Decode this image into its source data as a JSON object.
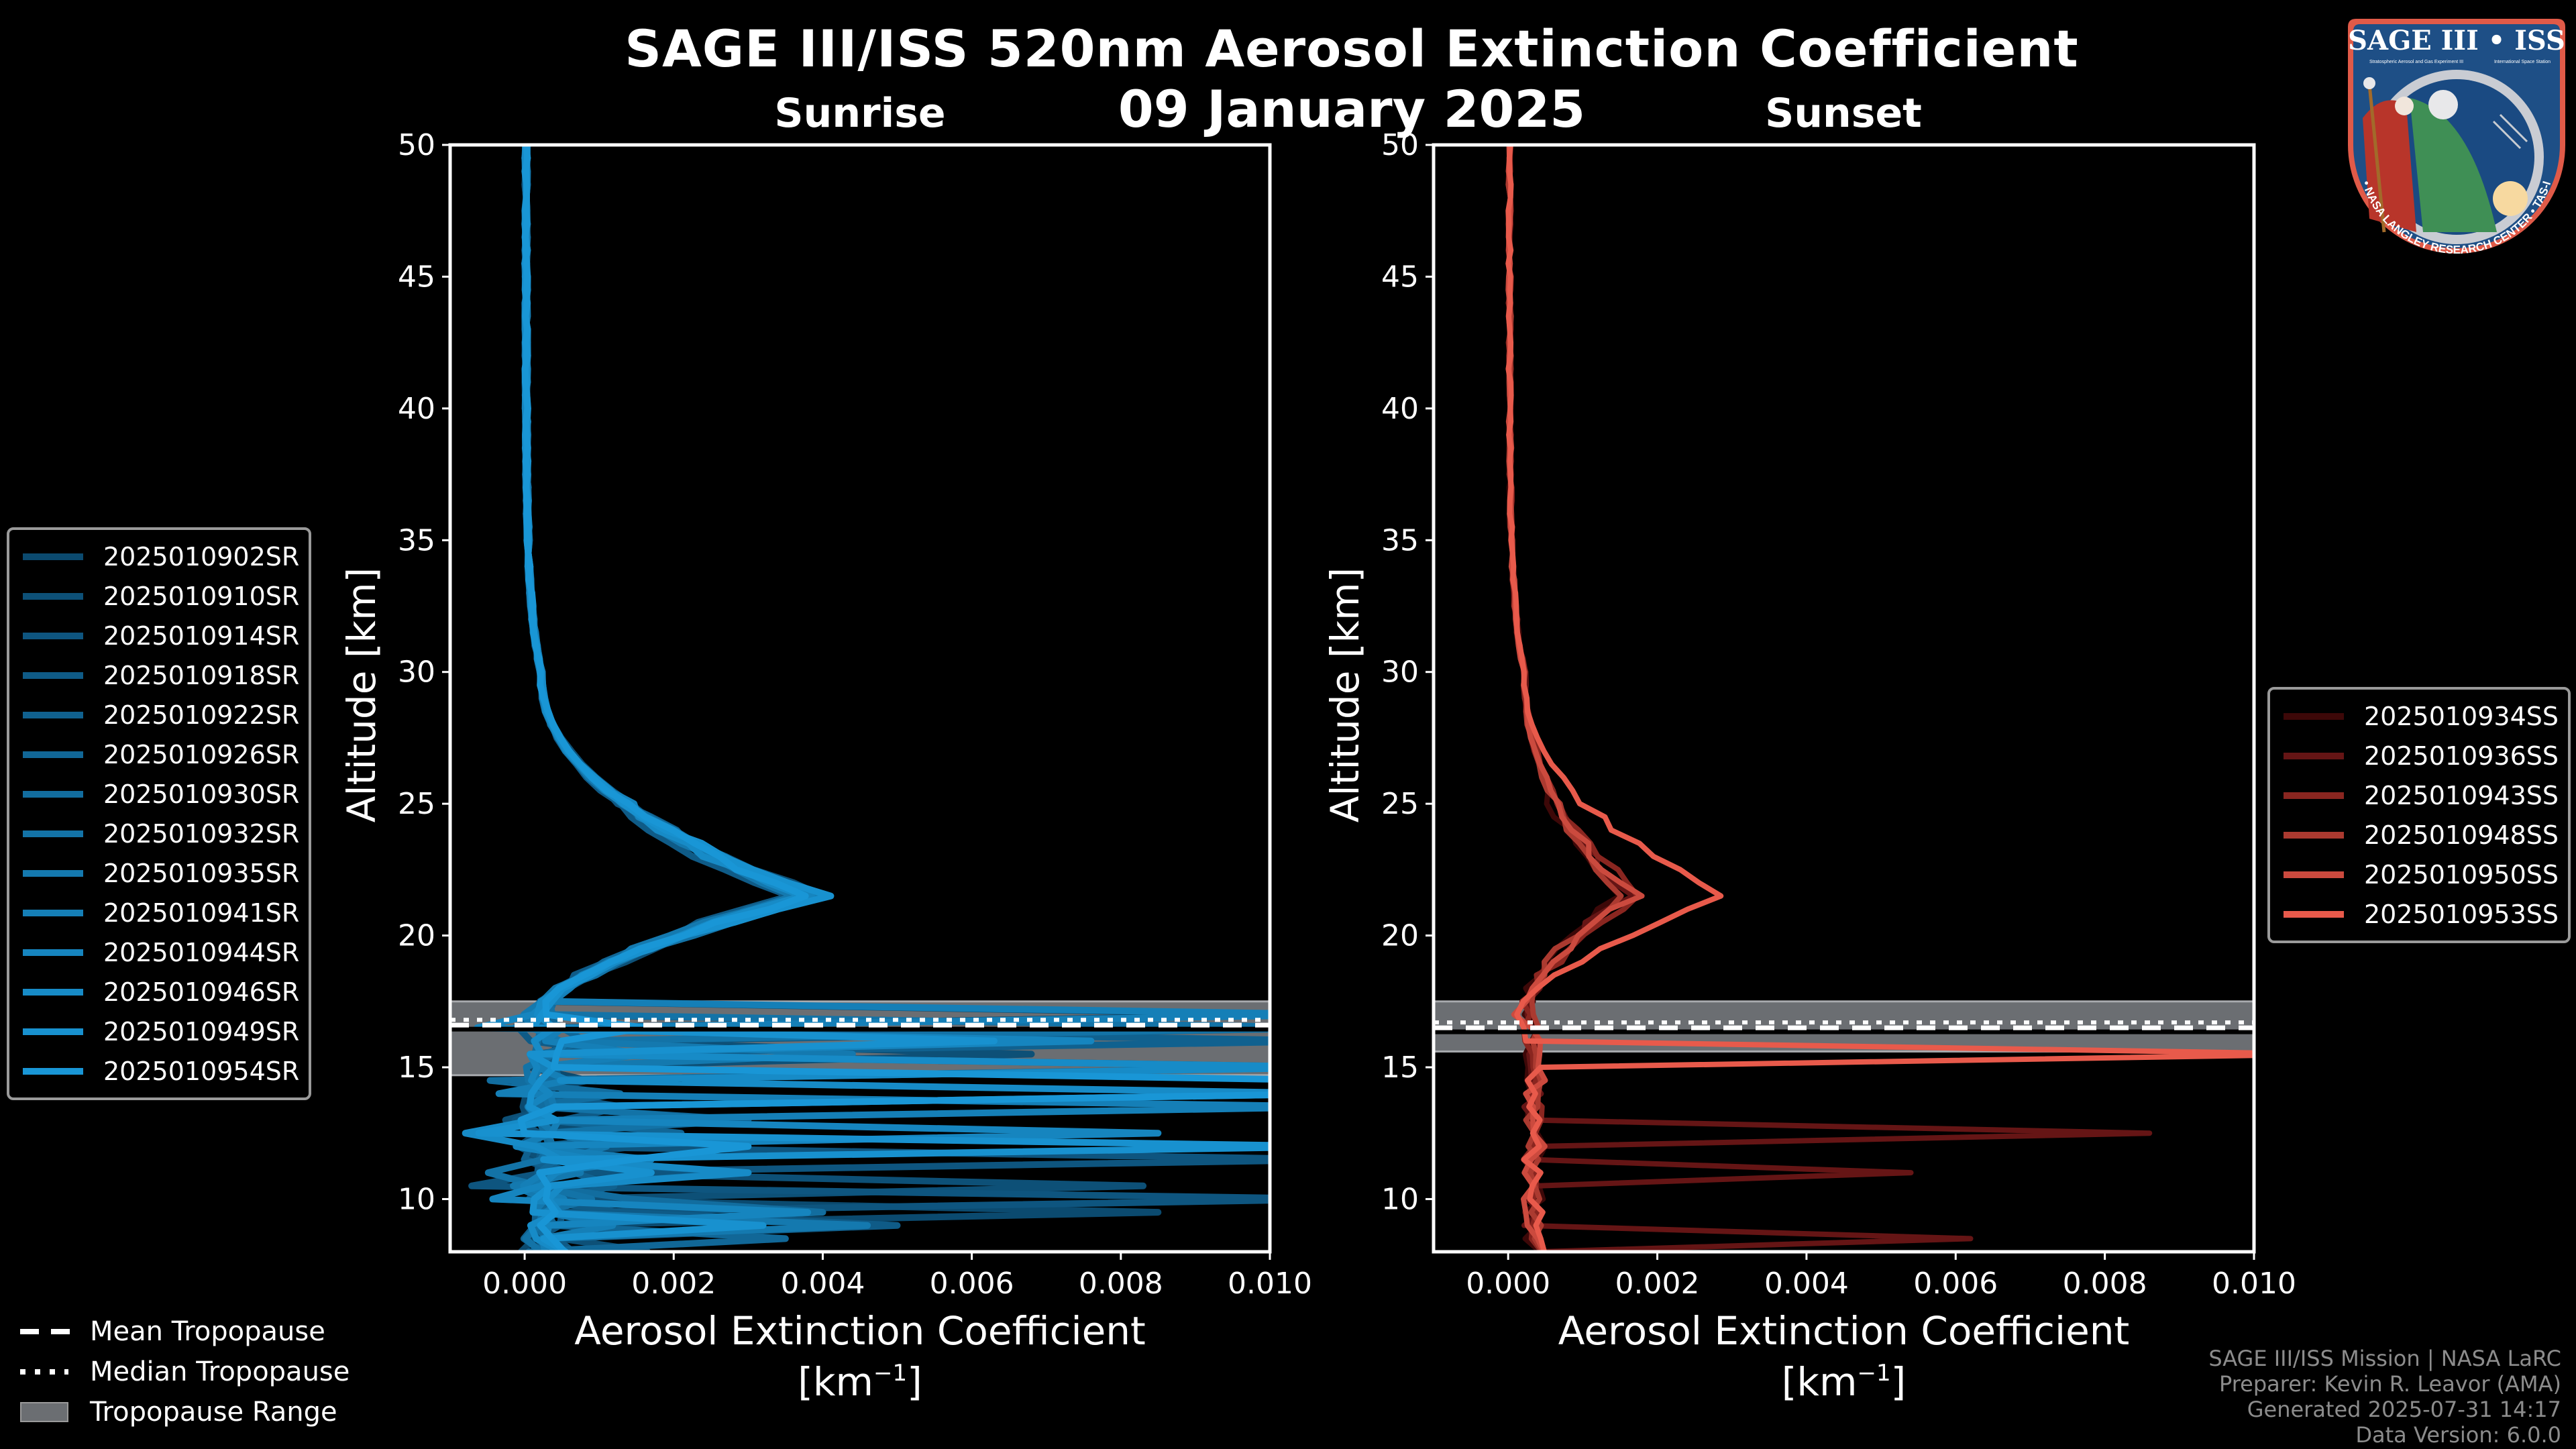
{
  "header": {
    "title": "SAGE III/ISS 520nm Aerosol Extinction Coefficient",
    "date": "09 January 2025"
  },
  "logo": {
    "title": "SAGE III • ISS",
    "subtitle_left": "Stratospheric Aerosol and Gas Experiment III",
    "subtitle_right": "International Space Station",
    "ring_text": "BALL • NASA LANGLEY RESEARCH CENTER • TAS-I • ESA"
  },
  "footer": {
    "line1": "SAGE III/ISS Mission | NASA LaRC",
    "line2": "Preparer: Kevin R. Leavor (AMA)",
    "line3": "Generated 2025-07-31 14:17",
    "line4": "Data Version: 6.0.0"
  },
  "tropopause_legend": {
    "mean": "Mean Tropopause",
    "median": "Median Tropopause",
    "range": "Tropopause Range"
  },
  "chart_data": [
    {
      "type": "line",
      "panel": "Sunrise",
      "title": "Sunrise",
      "xlabel": "Aerosol Extinction Coefficient",
      "xlabel_units": "[km",
      "xlabel_units_sup": "−1",
      "xlabel_units_close": "]",
      "ylabel": "Altitude [km]",
      "xlim": [
        -0.001,
        0.01
      ],
      "ylim": [
        8,
        50
      ],
      "xticks": [
        0.0,
        0.002,
        0.004,
        0.006,
        0.008,
        0.01
      ],
      "xtick_labels": [
        "0.000",
        "0.002",
        "0.004",
        "0.006",
        "0.008",
        "0.010"
      ],
      "yticks": [
        10,
        15,
        20,
        25,
        30,
        35,
        40,
        45,
        50
      ],
      "ytick_labels": [
        "10",
        "15",
        "20",
        "25",
        "30",
        "35",
        "40",
        "45",
        "50"
      ],
      "legend_position": "left-outside",
      "tropopause": {
        "mean": 16.6,
        "median": 16.7,
        "range": [
          14.7,
          17.5
        ]
      },
      "series": [
        {
          "name": "2025010902SR",
          "color": "#0b4a6f",
          "peak": 0.0036,
          "spikes": [
            [
              16.9,
              0.0105
            ],
            [
              12.0,
              0.0015
            ],
            [
              9.5,
              0.0085
            ]
          ]
        },
        {
          "name": "2025010910SR",
          "color": "#0d5077",
          "peak": 0.0041,
          "spikes": [
            [
              15.6,
              0.0068
            ],
            [
              10.6,
              0.0083
            ],
            [
              8.8,
              0.0012
            ]
          ]
        },
        {
          "name": "2025010914SR",
          "color": "#0e557f",
          "peak": 0.0038,
          "spikes": [
            [
              16.3,
              0.011
            ],
            [
              11.7,
              0.011
            ],
            [
              9.9,
              0.011
            ]
          ]
        },
        {
          "name": "2025010918SR",
          "color": "#0f5b87",
          "peak": 0.0035,
          "spikes": [
            [
              15.5,
              0.0014
            ],
            [
              12.7,
              0.002
            ],
            [
              9.2,
              0.005
            ]
          ]
        },
        {
          "name": "2025010922SR",
          "color": "#10618f",
          "peak": 0.0039,
          "spikes": [
            [
              16.0,
              0.011
            ],
            [
              13.2,
              0.003
            ],
            [
              10.4,
              0.0012
            ]
          ]
        },
        {
          "name": "2025010926SR",
          "color": "#116797",
          "peak": 0.0037,
          "spikes": [
            [
              15.2,
              0.011
            ],
            [
              12.3,
              0.0021
            ],
            [
              8.6,
              0.0035
            ]
          ]
        },
        {
          "name": "2025010930SR",
          "color": "#126d9f",
          "peak": 0.0038,
          "spikes": [
            [
              14.9,
              0.011
            ],
            [
              11.1,
              0.003
            ],
            [
              9.7,
              0.004
            ]
          ]
        },
        {
          "name": "2025010932SR",
          "color": "#1373a7",
          "peak": 0.004,
          "spikes": [
            [
              16.5,
              0.011
            ],
            [
              13.0,
              0.0027
            ],
            [
              10.1,
              0.0009
            ]
          ]
        },
        {
          "name": "2025010935SR",
          "color": "#1479af",
          "peak": 0.0036,
          "spikes": [
            [
              15.4,
              0.0044
            ],
            [
              12.1,
              0.0011
            ],
            [
              8.9,
              0.0046
            ]
          ]
        },
        {
          "name": "2025010941SR",
          "color": "#157fb7",
          "peak": 0.0038,
          "spikes": [
            [
              16.8,
              0.011
            ],
            [
              13.6,
              0.011
            ],
            [
              11.5,
              0.0017
            ]
          ]
        },
        {
          "name": "2025010944SR",
          "color": "#1685bf",
          "peak": 0.0039,
          "spikes": [
            [
              16.2,
              0.0076
            ],
            [
              12.5,
              0.0085
            ],
            [
              9.4,
              0.0038
            ]
          ]
        },
        {
          "name": "2025010946SR",
          "color": "#178bc7",
          "peak": 0.0037,
          "spikes": [
            [
              14.8,
              0.011
            ],
            [
              13.9,
              0.011
            ],
            [
              10.8,
              0.003
            ]
          ]
        },
        {
          "name": "2025010949SR",
          "color": "#1891cf",
          "peak": 0.004,
          "spikes": [
            [
              15.9,
              0.0063
            ],
            [
              11.9,
              0.011
            ],
            [
              9.0,
              0.0032
            ]
          ]
        },
        {
          "name": "2025010954SR",
          "color": "#1996d6",
          "peak": 0.0038,
          "spikes": [
            [
              14.7,
              0.011
            ],
            [
              14.1,
              0.011
            ],
            [
              12.0,
              0.003
            ]
          ]
        }
      ]
    },
    {
      "type": "line",
      "panel": "Sunset",
      "title": "Sunset",
      "xlabel": "Aerosol Extinction Coefficient",
      "xlabel_units": "[km",
      "xlabel_units_sup": "−1",
      "xlabel_units_close": "]",
      "ylabel": "Altitude [km]",
      "xlim": [
        -0.001,
        0.01
      ],
      "ylim": [
        8,
        50
      ],
      "xticks": [
        0.0,
        0.002,
        0.004,
        0.006,
        0.008,
        0.01
      ],
      "xtick_labels": [
        "0.000",
        "0.002",
        "0.004",
        "0.006",
        "0.008",
        "0.010"
      ],
      "yticks": [
        10,
        15,
        20,
        25,
        30,
        35,
        40,
        45,
        50
      ],
      "ytick_labels": [
        "10",
        "15",
        "20",
        "25",
        "30",
        "35",
        "40",
        "45",
        "50"
      ],
      "legend_position": "right-outside",
      "tropopause": {
        "mean": 16.5,
        "median": 16.6,
        "range": [
          15.6,
          17.5
        ]
      },
      "series": [
        {
          "name": "2025010934SS",
          "color": "#3d0808",
          "peak": 0.0015,
          "spikes": []
        },
        {
          "name": "2025010936SS",
          "color": "#651515",
          "peak": 0.0016,
          "spikes": [
            [
              12.5,
              0.0086
            ],
            [
              11.0,
              0.0054
            ],
            [
              8.3,
              0.0062
            ]
          ]
        },
        {
          "name": "2025010943SS",
          "color": "#8a2620",
          "peak": 0.0018,
          "spikes": []
        },
        {
          "name": "2025010948SS",
          "color": "#ab3a30",
          "peak": 0.0015,
          "spikes": []
        },
        {
          "name": "2025010950SS",
          "color": "#cb4a3e",
          "peak": 0.0017,
          "spikes": []
        },
        {
          "name": "2025010953SS",
          "color": "#e85a4b",
          "peak": 0.0029,
          "spikes": [
            [
              15.4,
              0.011
            ]
          ]
        }
      ]
    }
  ]
}
